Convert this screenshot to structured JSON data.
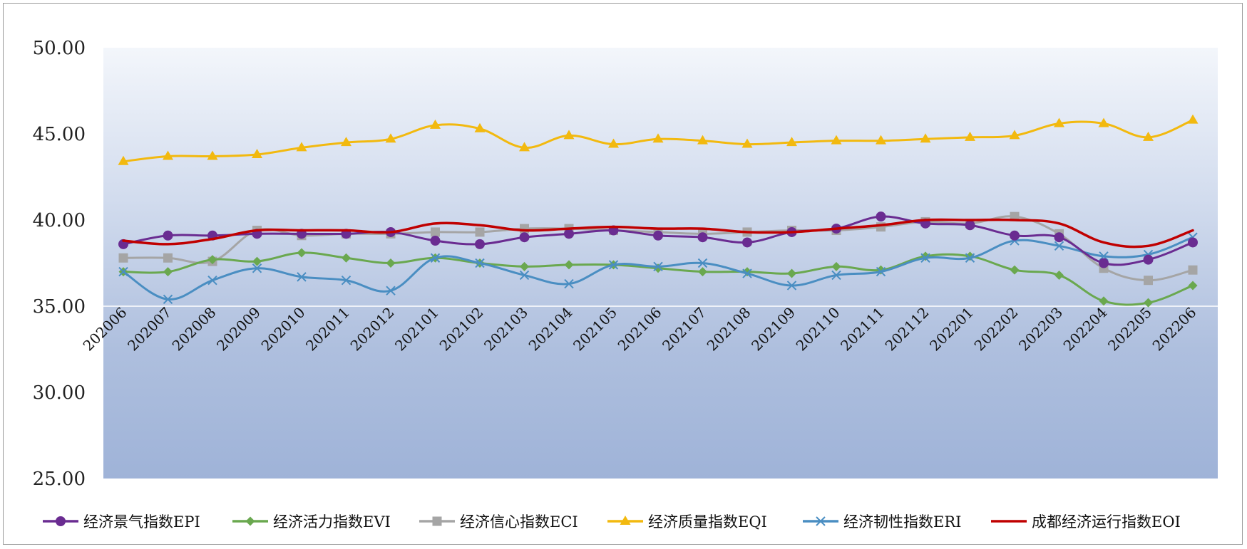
{
  "chart_data": {
    "type": "line",
    "title": "",
    "xlabel": "",
    "ylabel": "",
    "ylim": [
      25,
      50
    ],
    "yticks": [
      "50.00",
      "45.00",
      "40.00",
      "35.00",
      "30.00",
      "25.00"
    ],
    "categories": [
      "202006",
      "202007",
      "202008",
      "202009",
      "202010",
      "202011",
      "202012",
      "202101",
      "202102",
      "202103",
      "202104",
      "202105",
      "202106",
      "202107",
      "202108",
      "202109",
      "202110",
      "202111",
      "202112",
      "202201",
      "202202",
      "202203",
      "202204",
      "202205",
      "202206"
    ],
    "legend_position": "bottom",
    "series": [
      {
        "name": "经济景气指数EPI",
        "color": "#6a2c91",
        "marker": "circle",
        "values": [
          38.6,
          39.1,
          39.1,
          39.2,
          39.2,
          39.2,
          39.3,
          38.8,
          38.6,
          39.0,
          39.2,
          39.4,
          39.1,
          39.0,
          38.7,
          39.3,
          39.5,
          40.2,
          39.8,
          39.7,
          39.1,
          39.0,
          37.5,
          37.7,
          38.7
        ]
      },
      {
        "name": "经济活力指数EVI",
        "color": "#6aa84f",
        "marker": "diamond",
        "values": [
          37.0,
          37.0,
          37.7,
          37.6,
          38.1,
          37.8,
          37.5,
          37.8,
          37.5,
          37.3,
          37.4,
          37.4,
          37.2,
          37.0,
          37.0,
          36.9,
          37.3,
          37.1,
          37.9,
          37.9,
          37.1,
          36.8,
          35.3,
          35.2,
          36.2
        ]
      },
      {
        "name": "经济信心指数ECI",
        "color": "#a5a5a5",
        "marker": "square",
        "values": [
          37.8,
          37.8,
          37.6,
          39.4,
          39.1,
          39.2,
          39.2,
          39.3,
          39.3,
          39.5,
          39.5,
          39.4,
          39.3,
          39.2,
          39.3,
          39.4,
          39.4,
          39.6,
          39.9,
          39.8,
          40.2,
          39.2,
          37.2,
          36.5,
          37.1
        ]
      },
      {
        "name": "经济质量指数EQI",
        "color": "#f2b90f",
        "marker": "triangle",
        "values": [
          43.4,
          43.7,
          43.7,
          43.8,
          44.2,
          44.5,
          44.7,
          45.5,
          45.3,
          44.2,
          44.9,
          44.4,
          44.7,
          44.6,
          44.4,
          44.5,
          44.6,
          44.6,
          44.7,
          44.8,
          44.9,
          45.6,
          45.6,
          44.8,
          45.8
        ]
      },
      {
        "name": "经济韧性指数ERI",
        "color": "#4a8ec2",
        "marker": "x",
        "values": [
          37.0,
          35.4,
          36.5,
          37.2,
          36.7,
          36.5,
          35.9,
          37.8,
          37.5,
          36.8,
          36.3,
          37.4,
          37.3,
          37.5,
          36.9,
          36.2,
          36.8,
          37.0,
          37.8,
          37.8,
          38.8,
          38.5,
          37.9,
          38.0,
          39.0
        ]
      },
      {
        "name": "成都经济运行指数EOI",
        "color": "#c00000",
        "marker": "none",
        "values": [
          38.8,
          38.6,
          38.9,
          39.4,
          39.4,
          39.4,
          39.3,
          39.8,
          39.7,
          39.4,
          39.5,
          39.6,
          39.5,
          39.5,
          39.3,
          39.3,
          39.5,
          39.7,
          40.0,
          40.0,
          40.0,
          39.8,
          38.7,
          38.5,
          39.4
        ]
      }
    ]
  }
}
